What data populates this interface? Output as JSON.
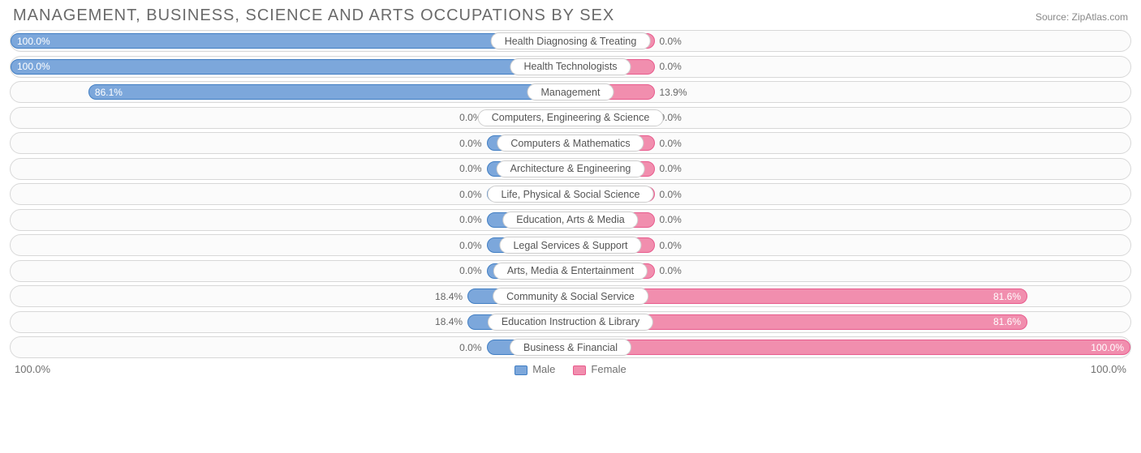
{
  "title": "MANAGEMENT, BUSINESS, SCIENCE AND ARTS OCCUPATIONS BY SEX",
  "source": "Source: ZipAtlas.com",
  "axis": {
    "left_label": "100.0%",
    "right_label": "100.0%"
  },
  "legend": {
    "male": "Male",
    "female": "Female"
  },
  "colors": {
    "male_fill": "#7ca7db",
    "male_border": "#417ec3",
    "female_fill": "#f18eae",
    "female_border": "#e85b8d",
    "track_border": "#d8d8d8",
    "track_bg": "#fbfbfb",
    "text": "#666666",
    "title": "#6a6a6a",
    "bg": "#ffffff"
  },
  "chart": {
    "type": "diverging-bar",
    "min_bar_pct": 15.0,
    "label_inside_threshold": 50.0,
    "rows": [
      {
        "category": "Health Diagnosing & Treating",
        "male": 100.0,
        "female": 0.0
      },
      {
        "category": "Health Technologists",
        "male": 100.0,
        "female": 0.0
      },
      {
        "category": "Management",
        "male": 86.1,
        "female": 13.9
      },
      {
        "category": "Computers, Engineering & Science",
        "male": 0.0,
        "female": 0.0
      },
      {
        "category": "Computers & Mathematics",
        "male": 0.0,
        "female": 0.0
      },
      {
        "category": "Architecture & Engineering",
        "male": 0.0,
        "female": 0.0
      },
      {
        "category": "Life, Physical & Social Science",
        "male": 0.0,
        "female": 0.0
      },
      {
        "category": "Education, Arts & Media",
        "male": 0.0,
        "female": 0.0
      },
      {
        "category": "Legal Services & Support",
        "male": 0.0,
        "female": 0.0
      },
      {
        "category": "Arts, Media & Entertainment",
        "male": 0.0,
        "female": 0.0
      },
      {
        "category": "Community & Social Service",
        "male": 18.4,
        "female": 81.6
      },
      {
        "category": "Education Instruction & Library",
        "male": 18.4,
        "female": 81.6
      },
      {
        "category": "Business & Financial",
        "male": 0.0,
        "female": 100.0
      }
    ]
  }
}
